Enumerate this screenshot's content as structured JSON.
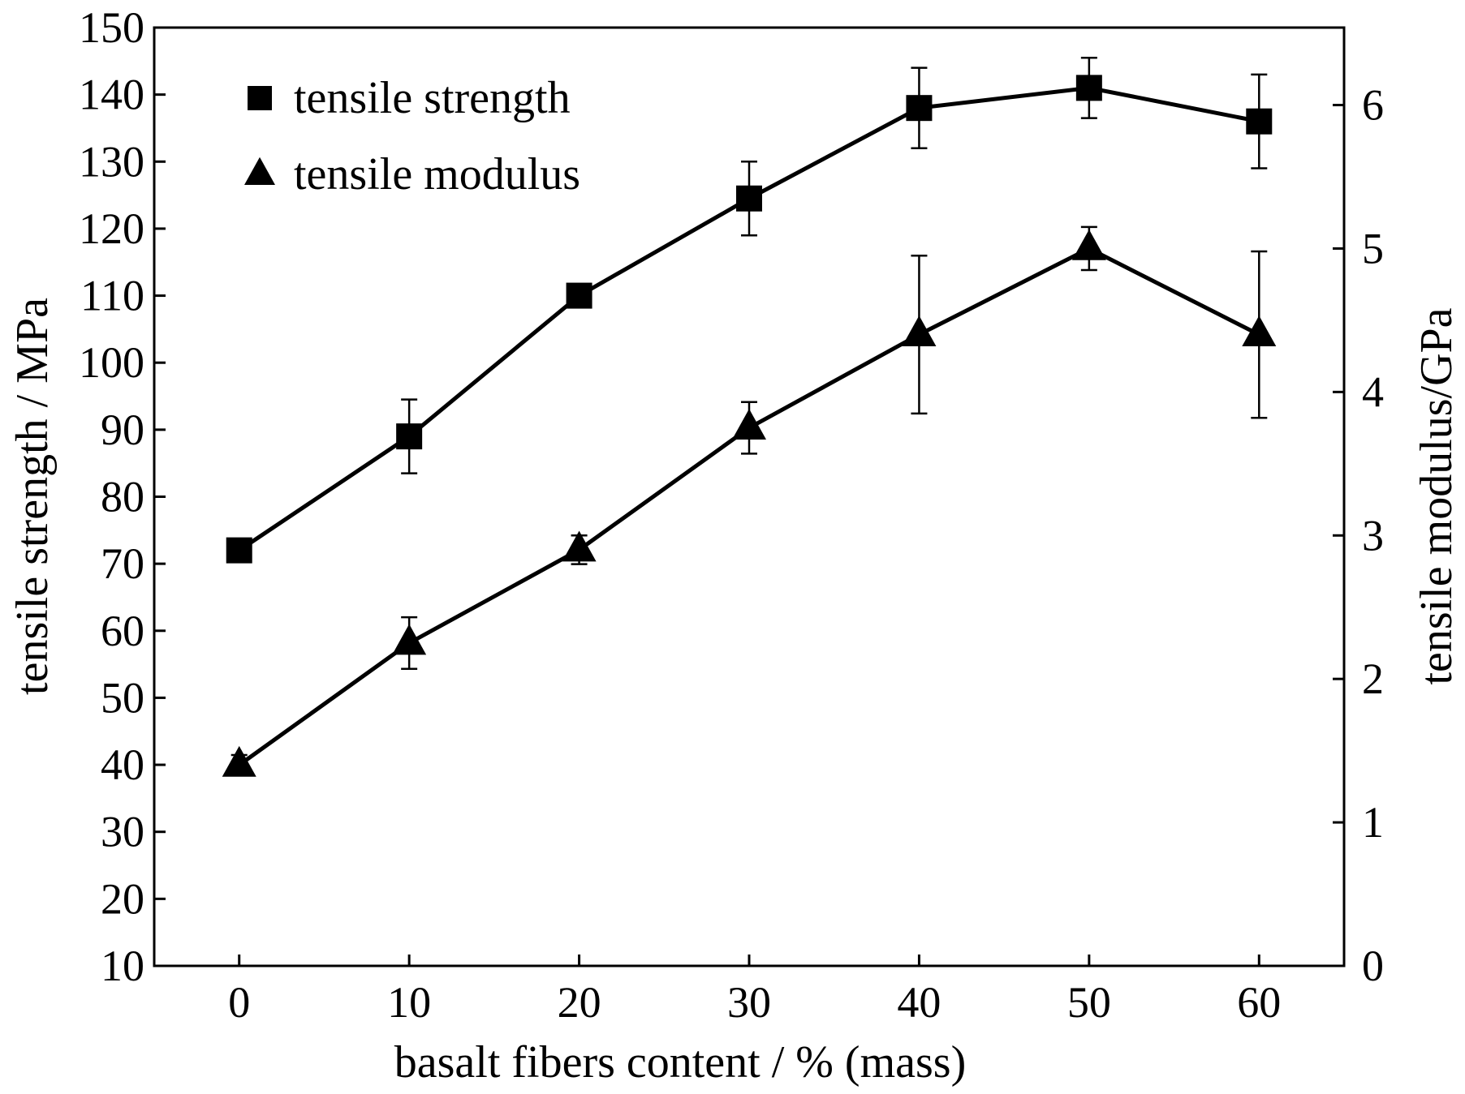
{
  "chart_data": {
    "type": "line",
    "title": "",
    "xlabel": "basalt fibers content / % (mass)",
    "ylabel": "tensile strength / MPa",
    "y2label": "tensile modulus/GPa",
    "xlim": [
      -5,
      65
    ],
    "ylim": [
      10,
      150
    ],
    "y2lim": [
      0,
      6.54
    ],
    "xticks": [
      0,
      10,
      20,
      30,
      40,
      50,
      60
    ],
    "yticks": [
      10,
      20,
      30,
      40,
      50,
      60,
      70,
      80,
      90,
      100,
      110,
      120,
      130,
      140,
      150
    ],
    "y2ticks": [
      0,
      1,
      2,
      3,
      4,
      5,
      6
    ],
    "grid": false,
    "legend_position": "top-left",
    "x": [
      0,
      10,
      20,
      30,
      40,
      50,
      60
    ],
    "series": [
      {
        "name": "tensile strength",
        "axis": "left",
        "marker": "square",
        "values": [
          72,
          89,
          110,
          124.5,
          138,
          141,
          136
        ],
        "error": [
          0,
          5.5,
          0,
          5.5,
          6,
          4.5,
          7
        ]
      },
      {
        "name": "tensile modulus",
        "axis": "right",
        "marker": "triangle",
        "values": [
          1.4,
          2.25,
          2.9,
          3.75,
          4.4,
          5.0,
          4.4
        ],
        "error": [
          0.07,
          0.18,
          0.1,
          0.18,
          0.55,
          0.15,
          0.58
        ]
      }
    ],
    "colors": {
      "line": "#000000",
      "background": "#ffffff"
    }
  }
}
